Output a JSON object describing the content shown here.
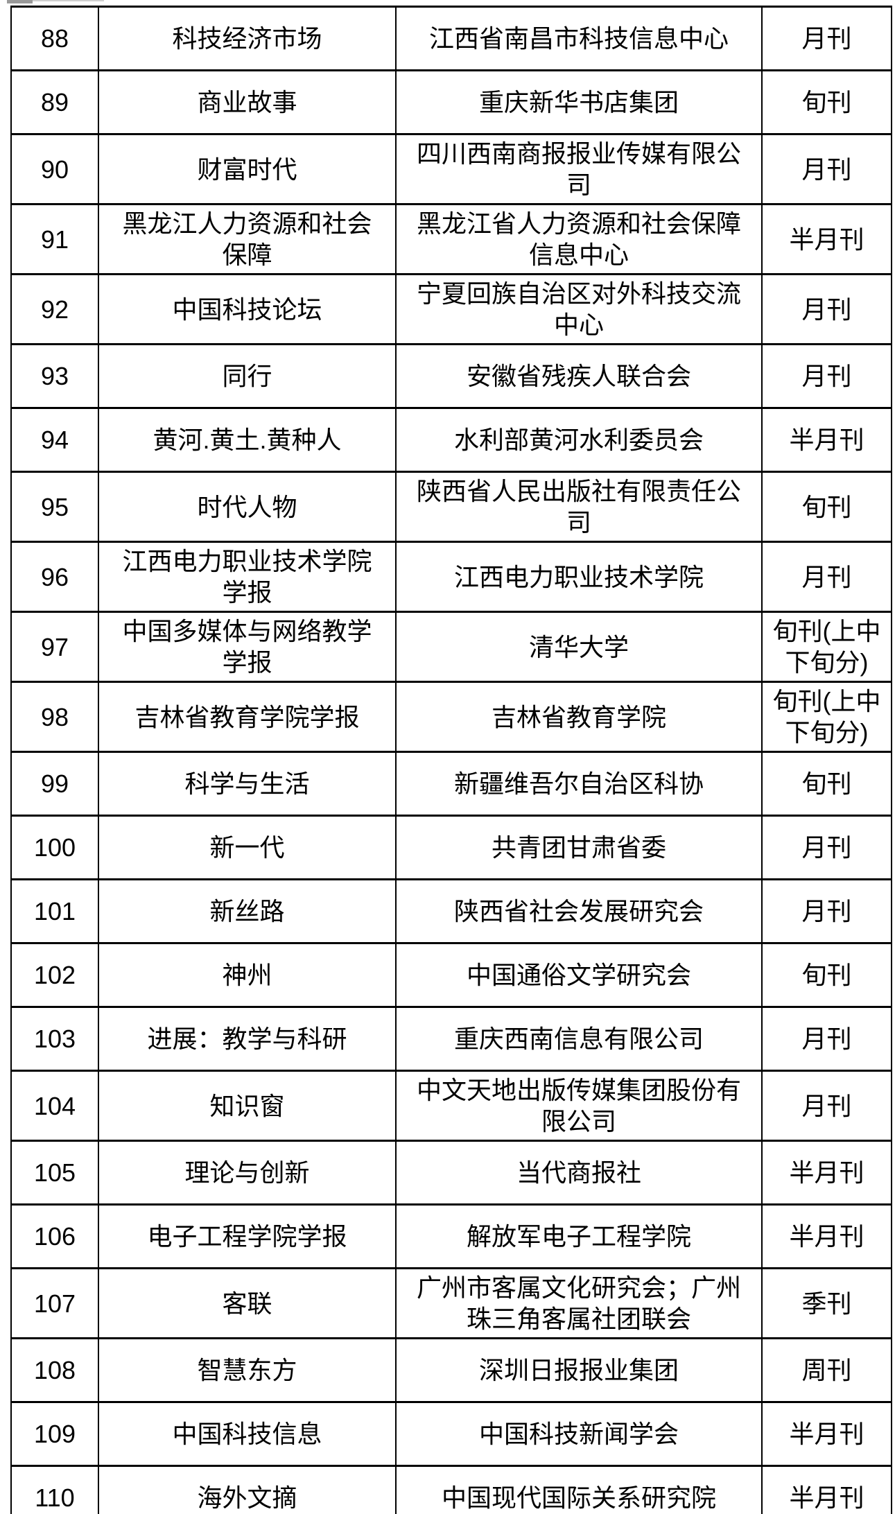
{
  "page": {
    "background": "#ffffff",
    "grid_color": "#000000"
  },
  "table": {
    "rows": [
      {
        "no": "88",
        "name": "科技经济市场",
        "organizer": "江西省南昌市科技信息中心",
        "frequency": "月刊"
      },
      {
        "no": "89",
        "name": "商业故事",
        "organizer": "重庆新华书店集团",
        "frequency": "旬刊"
      },
      {
        "no": "90",
        "name": "财富时代",
        "organizer": "四川西南商报报业传媒有限公司",
        "frequency": "月刊"
      },
      {
        "no": "91",
        "name": "黑龙江人力资源和社会保障",
        "organizer": "黑龙江省人力资源和社会保障信息中心",
        "frequency": "半月刊"
      },
      {
        "no": "92",
        "name": "中国科技论坛",
        "organizer": "宁夏回族自治区对外科技交流中心",
        "frequency": "月刊"
      },
      {
        "no": "93",
        "name": "同行",
        "organizer": "安徽省残疾人联合会",
        "frequency": "月刊"
      },
      {
        "no": "94",
        "name": "黄河.黄土.黄种人",
        "organizer": "水利部黄河水利委员会",
        "frequency": "半月刊"
      },
      {
        "no": "95",
        "name": "时代人物",
        "organizer": "陕西省人民出版社有限责任公司",
        "frequency": "旬刊"
      },
      {
        "no": "96",
        "name": "江西电力职业技术学院学报",
        "organizer": "江西电力职业技术学院",
        "frequency": "月刊"
      },
      {
        "no": "97",
        "name": "中国多媒体与网络教学学报",
        "organizer": "清华大学",
        "frequency": "旬刊(上中下旬分)"
      },
      {
        "no": "98",
        "name": "吉林省教育学院学报",
        "organizer": "吉林省教育学院",
        "frequency": "旬刊(上中下旬分)"
      },
      {
        "no": "99",
        "name": "科学与生活",
        "organizer": "新疆维吾尔自治区科协",
        "frequency": "旬刊"
      },
      {
        "no": "100",
        "name": "新一代",
        "organizer": "共青团甘肃省委",
        "frequency": "月刊"
      },
      {
        "no": "101",
        "name": "新丝路",
        "organizer": "陕西省社会发展研究会",
        "frequency": "月刊"
      },
      {
        "no": "102",
        "name": "神州",
        "organizer": "中国通俗文学研究会",
        "frequency": "旬刊"
      },
      {
        "no": "103",
        "name": "进展：教学与科研",
        "organizer": "重庆西南信息有限公司",
        "frequency": "月刊"
      },
      {
        "no": "104",
        "name": "知识窗",
        "organizer": "中文天地出版传媒集团股份有限公司",
        "frequency": "月刊"
      },
      {
        "no": "105",
        "name": "理论与创新",
        "organizer": "当代商报社",
        "frequency": "半月刊"
      },
      {
        "no": "106",
        "name": "电子工程学院学报",
        "organizer": "解放军电子工程学院",
        "frequency": "半月刊"
      },
      {
        "no": "107",
        "name": "客联",
        "organizer": "广州市客属文化研究会；广州珠三角客属社团联会",
        "frequency": "季刊"
      },
      {
        "no": "108",
        "name": "智慧东方",
        "organizer": "深圳日报报业集团",
        "frequency": "周刊"
      },
      {
        "no": "109",
        "name": "中国科技信息",
        "organizer": "中国科技新闻学会",
        "frequency": "半月刊"
      },
      {
        "no": "110",
        "name": "海外文摘",
        "organizer": "中国现代国际关系研究院",
        "frequency": "半月刊"
      }
    ]
  }
}
